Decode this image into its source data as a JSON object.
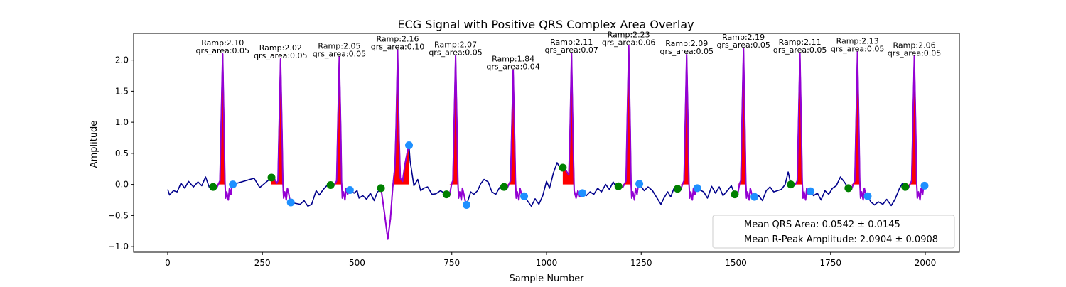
{
  "chart_data": {
    "type": "line",
    "title": "ECG Signal with Positive QRS Complex Area Overlay",
    "xlabel": "Sample Number",
    "ylabel": "Amplitude",
    "xlim": [
      -90,
      2090
    ],
    "ylim": [
      -1.09,
      2.43
    ],
    "x_ticks": [
      0,
      250,
      500,
      750,
      1000,
      1250,
      1500,
      1750,
      2000
    ],
    "x_tick_labels": [
      "0",
      "250",
      "500",
      "750",
      "1000",
      "1250",
      "1500",
      "1750",
      "2000"
    ],
    "y_ticks": [
      -1.0,
      -0.5,
      0.0,
      0.5,
      1.0,
      1.5,
      2.0
    ],
    "y_tick_labels": [
      "−1.0",
      "−0.5",
      "0.0",
      "0.5",
      "1.0",
      "1.5",
      "2.0"
    ],
    "grid": false,
    "colors": {
      "ecg": "#00008b",
      "qrs_segment": "#9400d3",
      "qrs_area": "#ff0000",
      "onset": "#008000",
      "offset": "#1e90ff"
    },
    "beats": [
      {
        "peak_x": 145,
        "ramp": 2.1,
        "area": 0.05,
        "onset": [
          120,
          -0.04
        ],
        "offset": [
          172,
          0.0
        ],
        "label": [
          "Ramp:2.10",
          "qrs_area:0.05"
        ]
      },
      {
        "peak_x": 298,
        "ramp": 2.02,
        "area": 0.05,
        "onset": [
          274,
          0.11
        ],
        "offset": [
          325,
          -0.29
        ],
        "label": [
          "Ramp:2.02",
          "qrs_area:0.05"
        ]
      },
      {
        "peak_x": 453,
        "ramp": 2.05,
        "area": 0.05,
        "onset": [
          430,
          -0.01
        ],
        "offset": [
          481,
          -0.09
        ],
        "label": [
          "Ramp:2.05",
          "qrs_area:0.05"
        ]
      },
      {
        "peak_x": 607,
        "ramp": 2.16,
        "area": 0.1,
        "onset": [
          563,
          -0.06
        ],
        "offset": [
          637,
          0.63
        ],
        "label": [
          "Ramp:2.16",
          "qrs_area:0.10"
        ]
      },
      {
        "peak_x": 760,
        "ramp": 2.07,
        "area": 0.05,
        "onset": [
          736,
          -0.16
        ],
        "offset": [
          789,
          -0.33
        ],
        "label": [
          "Ramp:2.07",
          "qrs_area:0.05"
        ]
      },
      {
        "peak_x": 912,
        "ramp": 1.84,
        "area": 0.04,
        "onset": [
          888,
          -0.04
        ],
        "offset": [
          941,
          -0.19
        ],
        "label": [
          "Ramp:1.84",
          "qrs_area:0.04"
        ]
      },
      {
        "peak_x": 1066,
        "ramp": 2.11,
        "area": 0.07,
        "onset": [
          1043,
          0.27
        ],
        "offset": [
          1095,
          -0.14
        ],
        "label": [
          "Ramp:2.11",
          "qrs_area:0.07"
        ]
      },
      {
        "peak_x": 1217,
        "ramp": 2.23,
        "area": 0.06,
        "onset": [
          1190,
          -0.03
        ],
        "offset": [
          1245,
          0.01
        ],
        "label": [
          "Ramp:2.23",
          "qrs_area:0.06"
        ]
      },
      {
        "peak_x": 1370,
        "ramp": 2.09,
        "area": 0.05,
        "onset": [
          1346,
          -0.07
        ],
        "offset": [
          1398,
          -0.06
        ],
        "label": [
          "Ramp:2.09",
          "qrs_area:0.05"
        ]
      },
      {
        "peak_x": 1520,
        "ramp": 2.19,
        "area": 0.05,
        "onset": [
          1497,
          -0.16
        ],
        "offset": [
          1549,
          -0.2
        ],
        "label": [
          "Ramp:2.19",
          "qrs_area:0.05"
        ]
      },
      {
        "peak_x": 1669,
        "ramp": 2.11,
        "area": 0.05,
        "onset": [
          1645,
          0.0
        ],
        "offset": [
          1697,
          -0.11
        ],
        "label": [
          "Ramp:2.11",
          "qrs_area:0.05"
        ]
      },
      {
        "peak_x": 1821,
        "ramp": 2.13,
        "area": 0.05,
        "onset": [
          1797,
          -0.06
        ],
        "offset": [
          1848,
          -0.19
        ],
        "label": [
          "Ramp:2.13",
          "qrs_area:0.05"
        ]
      },
      {
        "peak_x": 1971,
        "ramp": 2.06,
        "area": 0.05,
        "onset": [
          1947,
          -0.04
        ],
        "offset": [
          1998,
          -0.02
        ],
        "label": [
          "Ramp:2.06",
          "qrs_area:0.05"
        ]
      }
    ],
    "baseline_points": [
      [
        0,
        -0.08
      ],
      [
        5,
        -0.17
      ],
      [
        15,
        -0.1
      ],
      [
        25,
        -0.12
      ],
      [
        35,
        0.02
      ],
      [
        45,
        -0.06
      ],
      [
        55,
        0.05
      ],
      [
        68,
        -0.04
      ],
      [
        80,
        0.04
      ],
      [
        90,
        -0.02
      ],
      [
        100,
        0.12
      ],
      [
        110,
        -0.05
      ],
      [
        228,
        0.1
      ],
      [
        243,
        -0.05
      ],
      [
        350,
        -0.32
      ],
      [
        360,
        -0.26
      ],
      [
        370,
        -0.35
      ],
      [
        380,
        -0.32
      ],
      [
        392,
        -0.1
      ],
      [
        400,
        -0.17
      ],
      [
        411,
        -0.08
      ],
      [
        420,
        -0.02
      ],
      [
        492,
        -0.14
      ],
      [
        500,
        -0.1
      ],
      [
        505,
        -0.22
      ],
      [
        515,
        -0.18
      ],
      [
        525,
        -0.24
      ],
      [
        535,
        -0.14
      ],
      [
        545,
        -0.26
      ],
      [
        553,
        -0.13
      ],
      [
        640,
        0.38
      ],
      [
        650,
        -0.02
      ],
      [
        660,
        0.08
      ],
      [
        668,
        -0.1
      ],
      [
        676,
        -0.06
      ],
      [
        686,
        -0.04
      ],
      [
        698,
        -0.16
      ],
      [
        708,
        -0.15
      ],
      [
        720,
        -0.1
      ],
      [
        800,
        -0.12
      ],
      [
        808,
        -0.16
      ],
      [
        818,
        -0.1
      ],
      [
        826,
        0.01
      ],
      [
        835,
        0.08
      ],
      [
        846,
        0.04
      ],
      [
        856,
        -0.12
      ],
      [
        866,
        -0.16
      ],
      [
        876,
        -0.05
      ],
      [
        882,
        -0.07
      ],
      [
        960,
        -0.35
      ],
      [
        970,
        -0.23
      ],
      [
        980,
        -0.32
      ],
      [
        990,
        -0.18
      ],
      [
        1000,
        0.05
      ],
      [
        1008,
        -0.06
      ],
      [
        1018,
        0.18
      ],
      [
        1028,
        0.35
      ],
      [
        1036,
        0.26
      ],
      [
        1105,
        -0.18
      ],
      [
        1115,
        -0.12
      ],
      [
        1125,
        -0.16
      ],
      [
        1135,
        -0.06
      ],
      [
        1145,
        -0.12
      ],
      [
        1156,
        0.0
      ],
      [
        1166,
        -0.08
      ],
      [
        1176,
        0.04
      ],
      [
        1183,
        -0.03
      ],
      [
        1258,
        -0.1
      ],
      [
        1268,
        -0.04
      ],
      [
        1280,
        -0.1
      ],
      [
        1292,
        -0.22
      ],
      [
        1302,
        -0.32
      ],
      [
        1310,
        -0.22
      ],
      [
        1320,
        -0.12
      ],
      [
        1328,
        -0.2
      ],
      [
        1338,
        -0.04
      ],
      [
        1405,
        -0.09
      ],
      [
        1415,
        -0.12
      ],
      [
        1425,
        -0.22
      ],
      [
        1436,
        -0.03
      ],
      [
        1446,
        -0.14
      ],
      [
        1456,
        -0.04
      ],
      [
        1466,
        -0.18
      ],
      [
        1476,
        -0.11
      ],
      [
        1488,
        -0.02
      ],
      [
        1560,
        -0.18
      ],
      [
        1570,
        -0.26
      ],
      [
        1580,
        -0.1
      ],
      [
        1590,
        -0.04
      ],
      [
        1600,
        -0.12
      ],
      [
        1610,
        -0.1
      ],
      [
        1620,
        -0.08
      ],
      [
        1630,
        0.0
      ],
      [
        1638,
        0.2
      ],
      [
        1705,
        -0.18
      ],
      [
        1715,
        -0.14
      ],
      [
        1725,
        -0.25
      ],
      [
        1735,
        -0.1
      ],
      [
        1745,
        -0.16
      ],
      [
        1755,
        -0.06
      ],
      [
        1765,
        -0.02
      ],
      [
        1776,
        0.12
      ],
      [
        1786,
        0.04
      ],
      [
        1856,
        -0.28
      ],
      [
        1866,
        -0.33
      ],
      [
        1876,
        -0.28
      ],
      [
        1888,
        -0.32
      ],
      [
        1898,
        -0.24
      ],
      [
        1910,
        -0.34
      ],
      [
        1920,
        -0.24
      ],
      [
        1932,
        -0.06
      ],
      [
        1940,
        0.02
      ],
      [
        2000,
        -0.02
      ]
    ],
    "legend": {
      "placement": "lower right",
      "entries": [
        "Mean QRS Area: 0.0542 ± 0.0145",
        "Mean R-Peak Amplitude: 2.0904 ± 0.0908"
      ]
    }
  }
}
